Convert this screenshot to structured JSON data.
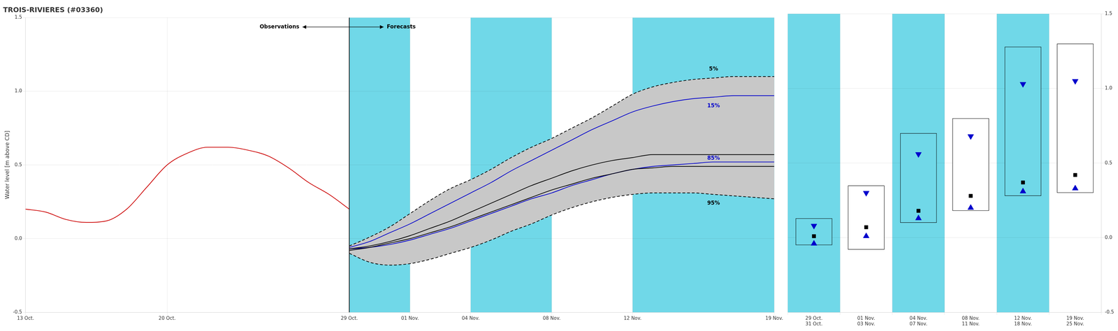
{
  "chart_data": [
    {
      "type": "line",
      "title": "TROIS-RIVIERES (#03360)",
      "ylabel": "Water level [m above CD]",
      "xlim": [
        0,
        37
      ],
      "xticks": [
        {
          "value": 0,
          "label": "13 Oct."
        },
        {
          "value": 7,
          "label": "20 Oct."
        },
        {
          "value": 16,
          "label": "29 Oct."
        },
        {
          "value": 19,
          "label": "01 Nov."
        },
        {
          "value": 22,
          "label": "04 Nov."
        },
        {
          "value": 26,
          "label": "08 Nov."
        },
        {
          "value": 30,
          "label": "12 Nov."
        },
        {
          "value": 37,
          "label": "19 Nov."
        }
      ],
      "ylim": [
        -0.5,
        1.5
      ],
      "yticks": [
        -0.5,
        {
          "value": 0.0,
          "label": "0.0"
        },
        0.5,
        {
          "value": 1.0,
          "label": "1.0"
        },
        1.5
      ],
      "grid": true,
      "bands": [
        [
          16,
          19
        ],
        [
          22,
          26
        ],
        [
          30,
          37
        ]
      ],
      "band_color": "#70D8E8",
      "fill_between": [
        "5%",
        "95%"
      ],
      "fill_color": "#C8C8C8",
      "arrow_labels": [
        "Observations",
        "Forecasts"
      ],
      "series": [
        {
          "color": "#CC0000",
          "x": [
            0,
            1,
            2,
            3,
            4,
            5,
            6,
            7,
            8,
            9,
            10,
            11,
            12,
            13,
            14,
            15,
            16
          ],
          "values": [
            0.2,
            0.18,
            0.13,
            0.11,
            0.12,
            0.2,
            0.35,
            0.5,
            0.58,
            0.62,
            0.62,
            0.6,
            0.56,
            0.48,
            0.38,
            0.3,
            0.2
          ]
        },
        {
          "name": "5%",
          "color": "#000000",
          "line_style": "dashed",
          "x": [
            16,
            17,
            18,
            19,
            20,
            21,
            22,
            23,
            24,
            25,
            26,
            27,
            28,
            29,
            30,
            31,
            32,
            33,
            34,
            35,
            36,
            37
          ],
          "values": [
            -0.05,
            0.01,
            0.08,
            0.17,
            0.26,
            0.34,
            0.4,
            0.47,
            0.55,
            0.62,
            0.68,
            0.75,
            0.82,
            0.9,
            0.98,
            1.03,
            1.06,
            1.08,
            1.09,
            1.1,
            1.1,
            1.1
          ]
        },
        {
          "name": "15%",
          "color": "#0000CC",
          "x": [
            16,
            17,
            18,
            19,
            20,
            21,
            22,
            23,
            24,
            25,
            26,
            27,
            28,
            29,
            30,
            31,
            32,
            33,
            34,
            35,
            36,
            37
          ],
          "values": [
            -0.06,
            -0.02,
            0.04,
            0.1,
            0.17,
            0.24,
            0.31,
            0.38,
            0.46,
            0.53,
            0.6,
            0.67,
            0.74,
            0.8,
            0.86,
            0.9,
            0.93,
            0.95,
            0.96,
            0.97,
            0.97,
            0.97
          ]
        },
        {
          "color": "#000000",
          "x": [
            16,
            17,
            18,
            19,
            20,
            21,
            22,
            23,
            24,
            25,
            26,
            27,
            28,
            29,
            30,
            31,
            32,
            33,
            34,
            35,
            36,
            37
          ],
          "values": [
            -0.07,
            -0.05,
            -0.02,
            0.02,
            0.07,
            0.12,
            0.18,
            0.24,
            0.3,
            0.36,
            0.41,
            0.46,
            0.5,
            0.53,
            0.55,
            0.57,
            0.57,
            0.57,
            0.57,
            0.57,
            0.57,
            0.57
          ]
        },
        {
          "color": "#000000",
          "x": [
            16,
            17,
            18,
            19,
            20,
            21,
            22,
            23,
            24,
            25,
            26,
            27,
            28,
            29,
            30,
            31,
            32,
            33,
            34,
            35,
            36,
            37
          ],
          "values": [
            -0.08,
            -0.06,
            -0.03,
            0.0,
            0.04,
            0.08,
            0.13,
            0.18,
            0.23,
            0.28,
            0.33,
            0.37,
            0.41,
            0.44,
            0.47,
            0.48,
            0.49,
            0.49,
            0.49,
            0.49,
            0.49,
            0.49
          ]
        },
        {
          "name": "85%",
          "color": "#0000CC",
          "x": [
            16,
            17,
            18,
            19,
            20,
            21,
            22,
            23,
            24,
            25,
            26,
            27,
            28,
            29,
            30,
            31,
            32,
            33,
            34,
            35,
            36,
            37
          ],
          "values": [
            -0.07,
            -0.06,
            -0.04,
            -0.01,
            0.03,
            0.07,
            0.12,
            0.17,
            0.22,
            0.27,
            0.31,
            0.36,
            0.4,
            0.44,
            0.47,
            0.49,
            0.5,
            0.51,
            0.52,
            0.52,
            0.52,
            0.52
          ]
        },
        {
          "name": "95%",
          "color": "#000000",
          "line_style": "dashed",
          "x": [
            16,
            17,
            18,
            19,
            20,
            21,
            22,
            23,
            24,
            25,
            26,
            27,
            28,
            29,
            30,
            31,
            32,
            33,
            34,
            35,
            36,
            37
          ],
          "values": [
            -0.1,
            -0.16,
            -0.18,
            -0.17,
            -0.14,
            -0.1,
            -0.06,
            -0.01,
            0.05,
            0.1,
            0.16,
            0.21,
            0.25,
            0.28,
            0.3,
            0.31,
            0.31,
            0.31,
            0.3,
            0.29,
            0.28,
            0.27
          ]
        }
      ]
    },
    {
      "type": "box",
      "categories": [
        [
          "29 Oct.",
          "31 Oct."
        ],
        [
          "01 Nov.",
          "03 Nov."
        ],
        [
          "04 Nov.",
          "07 Nov."
        ],
        [
          "08 Nov.",
          "11 Nov."
        ],
        [
          "12 Nov.",
          "18 Nov."
        ],
        [
          "19 Nov.",
          "25 Nov."
        ]
      ],
      "ylim": [
        -0.5,
        1.5
      ],
      "yticks": [
        -0.5,
        {
          "value": 0.0,
          "label": "0.0"
        },
        0.5,
        {
          "value": 1.0,
          "label": "1.0"
        },
        1.5
      ],
      "grid": true,
      "box_low": [
        -0.05,
        -0.08,
        0.1,
        0.18,
        0.28,
        0.3
      ],
      "box_high": [
        0.13,
        0.35,
        0.7,
        0.8,
        1.28,
        1.3
      ],
      "shaded": [
        true,
        false,
        true,
        false,
        true,
        false
      ],
      "band_color": "#70D8E8",
      "series": [
        {
          "marker": "triangle-down",
          "color": "#0000CC",
          "values": [
            0.08,
            0.3,
            0.56,
            0.68,
            1.03,
            1.05
          ]
        },
        {
          "marker": "square",
          "color": "#000000",
          "values": [
            0.01,
            0.07,
            0.18,
            0.28,
            0.37,
            0.42
          ]
        },
        {
          "marker": "triangle-up",
          "color": "#0000CC",
          "values": [
            -0.04,
            0.01,
            0.13,
            0.2,
            0.31,
            0.33
          ]
        }
      ]
    }
  ]
}
